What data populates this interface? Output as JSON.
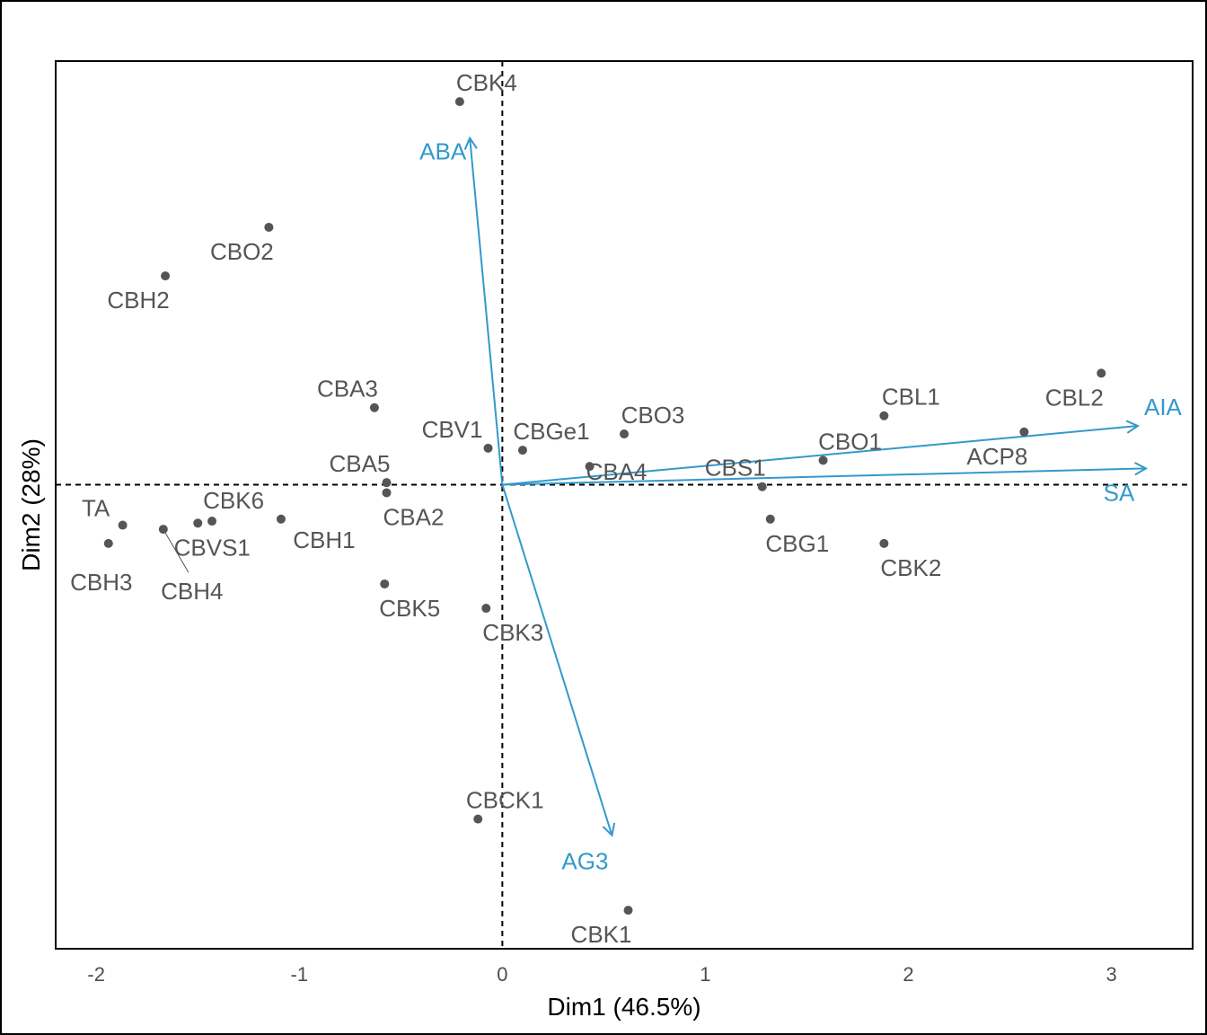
{
  "chart_data": {
    "type": "scatter",
    "title": "",
    "xlabel": "Dim1 (46.5%)",
    "ylabel": "Dim2 (28%)",
    "xlim": [
      -2.2,
      3.4
    ],
    "ylim": [
      -2.29,
      2.09
    ],
    "x_ticks": [
      -2,
      -1,
      0,
      1,
      2,
      3
    ],
    "x_tick_labels": [
      "-2",
      "-1",
      "0",
      "1",
      "2",
      "3"
    ],
    "reference_lines": {
      "x": 0,
      "y": 0
    },
    "colors": {
      "points": "#555555",
      "vectors": "#3399cc"
    },
    "points": [
      {
        "label": "CBK4",
        "x": -0.21,
        "y": 1.89
      },
      {
        "label": "CBO2",
        "x": -1.15,
        "y": 1.27
      },
      {
        "label": "CBH2",
        "x": -1.66,
        "y": 1.03
      },
      {
        "label": "CBA3",
        "x": -0.63,
        "y": 0.38
      },
      {
        "label": "CBV1",
        "x": -0.07,
        "y": 0.18
      },
      {
        "label": "CBGe1",
        "x": 0.1,
        "y": 0.17
      },
      {
        "label": "CBO3",
        "x": 0.6,
        "y": 0.25
      },
      {
        "label": "CBA5",
        "x": -0.57,
        "y": 0.01
      },
      {
        "label": "CBA4",
        "x": 0.43,
        "y": 0.09
      },
      {
        "label": "CBA2",
        "x": -0.57,
        "y": -0.04
      },
      {
        "label": "CBK6",
        "x": -1.43,
        "y": -0.18
      },
      {
        "label": "CBVS1",
        "x": -1.5,
        "y": -0.19
      },
      {
        "label": "CBH1",
        "x": -1.09,
        "y": -0.17
      },
      {
        "label": "TA",
        "x": -1.87,
        "y": -0.2
      },
      {
        "label": "CBH3",
        "x": -1.94,
        "y": -0.29
      },
      {
        "label": "CBH4",
        "x": -1.67,
        "y": -0.22
      },
      {
        "label": "CBK5",
        "x": -0.58,
        "y": -0.49
      },
      {
        "label": "CBK3",
        "x": -0.08,
        "y": -0.61
      },
      {
        "label": "CBCK1",
        "x": -0.12,
        "y": -1.65
      },
      {
        "label": "CBK1",
        "x": 0.62,
        "y": -2.1
      },
      {
        "label": "CBL1",
        "x": 1.88,
        "y": 0.34
      },
      {
        "label": "CBL2",
        "x": 2.95,
        "y": 0.55
      },
      {
        "label": "CBO1",
        "x": 1.58,
        "y": 0.12
      },
      {
        "label": "CBS1",
        "x": 1.28,
        "y": -0.01
      },
      {
        "label": "ACP8",
        "x": 2.57,
        "y": 0.26
      },
      {
        "label": "CBG1",
        "x": 1.32,
        "y": -0.17
      },
      {
        "label": "CBK2",
        "x": 1.88,
        "y": -0.29
      }
    ],
    "vectors": [
      {
        "label": "ABA",
        "x": -0.16,
        "y": 1.71
      },
      {
        "label": "AIA",
        "x": 3.13,
        "y": 0.29
      },
      {
        "label": "SA",
        "x": 3.17,
        "y": 0.08
      },
      {
        "label": "AG3",
        "x": 0.54,
        "y": -1.73
      }
    ]
  }
}
